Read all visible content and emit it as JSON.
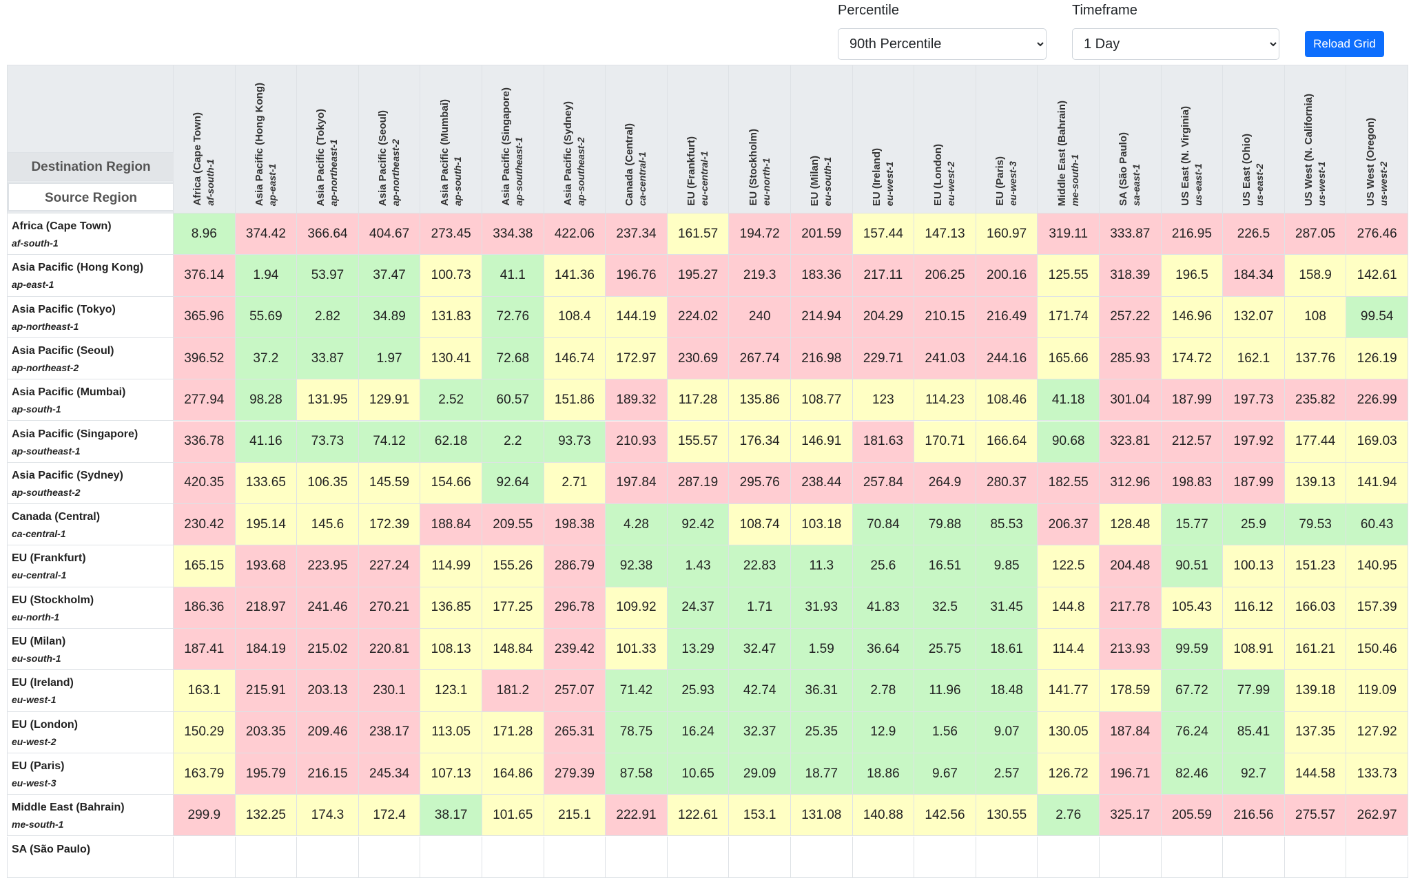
{
  "controls": {
    "percentile": {
      "label": "Percentile",
      "selected": "90th Percentile"
    },
    "timeframe": {
      "label": "Timeframe",
      "selected": "1 Day"
    },
    "button": "Reload Grid"
  },
  "table": {
    "corner": [
      "Destination Region",
      "Source Region"
    ],
    "palette": {
      "low": "#c8f7c5",
      "mid": "#ffffc4",
      "high": "#ffcdd2"
    },
    "columns": [
      {
        "name": "Africa (Cape Town)",
        "code": "af-south-1"
      },
      {
        "name": "Asia Pacific (Hong Kong)",
        "code": "ap-east-1"
      },
      {
        "name": "Asia Pacific (Tokyo)",
        "code": "ap-northeast-1"
      },
      {
        "name": "Asia Pacific (Seoul)",
        "code": "ap-northeast-2"
      },
      {
        "name": "Asia Pacific (Mumbai)",
        "code": "ap-south-1"
      },
      {
        "name": "Asia Pacific (Singapore)",
        "code": "ap-southeast-1"
      },
      {
        "name": "Asia Pacific (Sydney)",
        "code": "ap-southeast-2"
      },
      {
        "name": "Canada (Central)",
        "code": "ca-central-1"
      },
      {
        "name": "EU (Frankfurt)",
        "code": "eu-central-1"
      },
      {
        "name": "EU (Stockholm)",
        "code": "eu-north-1"
      },
      {
        "name": "EU (Milan)",
        "code": "eu-south-1"
      },
      {
        "name": "EU (Ireland)",
        "code": "eu-west-1"
      },
      {
        "name": "EU (London)",
        "code": "eu-west-2"
      },
      {
        "name": "EU (Paris)",
        "code": "eu-west-3"
      },
      {
        "name": "Middle East (Bahrain)",
        "code": "me-south-1"
      },
      {
        "name": "SA (São Paulo)",
        "code": "sa-east-1"
      },
      {
        "name": "US East (N. Virginia)",
        "code": "us-east-1"
      },
      {
        "name": "US East (Ohio)",
        "code": "us-east-2"
      },
      {
        "name": "US West (N. California)",
        "code": "us-west-1"
      },
      {
        "name": "US West (Oregon)",
        "code": "us-west-2"
      }
    ],
    "rows": [
      {
        "name": "Africa (Cape Town)",
        "code": "af-south-1",
        "values": [
          8.96,
          374.42,
          366.64,
          404.67,
          273.45,
          334.38,
          422.06,
          237.34,
          161.57,
          194.72,
          201.59,
          157.44,
          147.13,
          160.97,
          319.11,
          333.87,
          216.95,
          226.5,
          287.05,
          276.46
        ],
        "levels": [
          "low",
          "high",
          "high",
          "high",
          "high",
          "high",
          "high",
          "high",
          "mid",
          "high",
          "high",
          "mid",
          "mid",
          "mid",
          "high",
          "high",
          "high",
          "high",
          "high",
          "high"
        ]
      },
      {
        "name": "Asia Pacific (Hong Kong)",
        "code": "ap-east-1",
        "values": [
          376.14,
          1.94,
          53.97,
          37.47,
          100.73,
          41.1,
          141.36,
          196.76,
          195.27,
          219.3,
          183.36,
          217.11,
          206.25,
          200.16,
          125.55,
          318.39,
          196.5,
          184.34,
          158.9,
          142.61
        ],
        "levels": [
          "high",
          "low",
          "low",
          "low",
          "mid",
          "low",
          "mid",
          "high",
          "high",
          "high",
          "high",
          "high",
          "high",
          "high",
          "mid",
          "high",
          "mid",
          "high",
          "mid",
          "mid"
        ]
      },
      {
        "name": "Asia Pacific (Tokyo)",
        "code": "ap-northeast-1",
        "values": [
          365.96,
          55.69,
          2.82,
          34.89,
          131.83,
          72.76,
          108.4,
          144.19,
          224.02,
          240.0,
          214.94,
          204.29,
          210.15,
          216.49,
          171.74,
          257.22,
          146.96,
          132.07,
          108.0,
          99.54
        ],
        "levels": [
          "high",
          "low",
          "low",
          "low",
          "mid",
          "low",
          "mid",
          "mid",
          "high",
          "high",
          "high",
          "high",
          "high",
          "high",
          "mid",
          "high",
          "mid",
          "mid",
          "mid",
          "low"
        ]
      },
      {
        "name": "Asia Pacific (Seoul)",
        "code": "ap-northeast-2",
        "values": [
          396.52,
          37.2,
          33.87,
          1.97,
          130.41,
          72.68,
          146.74,
          172.97,
          230.69,
          267.74,
          216.98,
          229.71,
          241.03,
          244.16,
          165.66,
          285.93,
          174.72,
          162.1,
          137.76,
          126.19
        ],
        "levels": [
          "high",
          "low",
          "low",
          "low",
          "mid",
          "low",
          "mid",
          "mid",
          "high",
          "high",
          "high",
          "high",
          "high",
          "high",
          "mid",
          "high",
          "mid",
          "mid",
          "mid",
          "mid"
        ]
      },
      {
        "name": "Asia Pacific (Mumbai)",
        "code": "ap-south-1",
        "values": [
          277.94,
          98.28,
          131.95,
          129.91,
          2.52,
          60.57,
          151.86,
          189.32,
          117.28,
          135.86,
          108.77,
          123.0,
          114.23,
          108.46,
          41.18,
          301.04,
          187.99,
          197.73,
          235.82,
          226.99
        ],
        "levels": [
          "high",
          "low",
          "mid",
          "mid",
          "low",
          "low",
          "mid",
          "high",
          "mid",
          "mid",
          "mid",
          "mid",
          "mid",
          "mid",
          "low",
          "high",
          "high",
          "high",
          "high",
          "high"
        ]
      },
      {
        "name": "Asia Pacific (Singapore)",
        "code": "ap-southeast-1",
        "values": [
          336.78,
          41.16,
          73.73,
          74.12,
          62.18,
          2.2,
          93.73,
          210.93,
          155.57,
          176.34,
          146.91,
          181.63,
          170.71,
          166.64,
          90.68,
          323.81,
          212.57,
          197.92,
          177.44,
          169.03
        ],
        "levels": [
          "high",
          "low",
          "low",
          "low",
          "low",
          "low",
          "low",
          "high",
          "mid",
          "mid",
          "mid",
          "high",
          "mid",
          "mid",
          "low",
          "high",
          "high",
          "high",
          "mid",
          "mid"
        ]
      },
      {
        "name": "Asia Pacific (Sydney)",
        "code": "ap-southeast-2",
        "values": [
          420.35,
          133.65,
          106.35,
          145.59,
          154.66,
          92.64,
          2.71,
          197.84,
          287.19,
          295.76,
          238.44,
          257.84,
          264.9,
          280.37,
          182.55,
          312.96,
          198.83,
          187.99,
          139.13,
          141.94
        ],
        "levels": [
          "high",
          "mid",
          "mid",
          "mid",
          "mid",
          "low",
          "mid",
          "high",
          "high",
          "high",
          "high",
          "high",
          "high",
          "high",
          "high",
          "high",
          "high",
          "high",
          "mid",
          "mid"
        ]
      },
      {
        "name": "Canada (Central)",
        "code": "ca-central-1",
        "values": [
          230.42,
          195.14,
          145.6,
          172.39,
          188.84,
          209.55,
          198.38,
          4.28,
          92.42,
          108.74,
          103.18,
          70.84,
          79.88,
          85.53,
          206.37,
          128.48,
          15.77,
          25.9,
          79.53,
          60.43
        ],
        "levels": [
          "high",
          "mid",
          "mid",
          "mid",
          "high",
          "high",
          "high",
          "low",
          "low",
          "mid",
          "mid",
          "low",
          "low",
          "low",
          "high",
          "mid",
          "low",
          "low",
          "low",
          "low"
        ]
      },
      {
        "name": "EU (Frankfurt)",
        "code": "eu-central-1",
        "values": [
          165.15,
          193.68,
          223.95,
          227.24,
          114.99,
          155.26,
          286.79,
          92.38,
          1.43,
          22.83,
          11.3,
          25.6,
          16.51,
          9.85,
          122.5,
          204.48,
          90.51,
          100.13,
          151.23,
          140.95
        ],
        "levels": [
          "mid",
          "high",
          "high",
          "high",
          "mid",
          "mid",
          "high",
          "low",
          "low",
          "low",
          "low",
          "low",
          "low",
          "low",
          "mid",
          "high",
          "low",
          "mid",
          "mid",
          "mid"
        ]
      },
      {
        "name": "EU (Stockholm)",
        "code": "eu-north-1",
        "values": [
          186.36,
          218.97,
          241.46,
          270.21,
          136.85,
          177.25,
          296.78,
          109.92,
          24.37,
          1.71,
          31.93,
          41.83,
          32.5,
          31.45,
          144.8,
          217.78,
          105.43,
          116.12,
          166.03,
          157.39
        ],
        "levels": [
          "high",
          "high",
          "high",
          "high",
          "mid",
          "mid",
          "high",
          "mid",
          "low",
          "low",
          "low",
          "low",
          "low",
          "low",
          "mid",
          "high",
          "mid",
          "mid",
          "mid",
          "mid"
        ]
      },
      {
        "name": "EU (Milan)",
        "code": "eu-south-1",
        "values": [
          187.41,
          184.19,
          215.02,
          220.81,
          108.13,
          148.84,
          239.42,
          101.33,
          13.29,
          32.47,
          1.59,
          36.64,
          25.75,
          18.61,
          114.4,
          213.93,
          99.59,
          108.91,
          161.21,
          150.46
        ],
        "levels": [
          "high",
          "high",
          "high",
          "high",
          "mid",
          "mid",
          "high",
          "mid",
          "low",
          "low",
          "low",
          "low",
          "low",
          "low",
          "mid",
          "high",
          "low",
          "mid",
          "mid",
          "mid"
        ]
      },
      {
        "name": "EU (Ireland)",
        "code": "eu-west-1",
        "values": [
          163.1,
          215.91,
          203.13,
          230.1,
          123.1,
          181.2,
          257.07,
          71.42,
          25.93,
          42.74,
          36.31,
          2.78,
          11.96,
          18.48,
          141.77,
          178.59,
          67.72,
          77.99,
          139.18,
          119.09
        ],
        "levels": [
          "mid",
          "high",
          "high",
          "high",
          "mid",
          "high",
          "high",
          "low",
          "low",
          "low",
          "low",
          "low",
          "low",
          "low",
          "mid",
          "mid",
          "low",
          "low",
          "mid",
          "mid"
        ]
      },
      {
        "name": "EU (London)",
        "code": "eu-west-2",
        "values": [
          150.29,
          203.35,
          209.46,
          238.17,
          113.05,
          171.28,
          265.31,
          78.75,
          16.24,
          32.37,
          25.35,
          12.9,
          1.56,
          9.07,
          130.05,
          187.84,
          76.24,
          85.41,
          137.35,
          127.92
        ],
        "levels": [
          "mid",
          "high",
          "high",
          "high",
          "mid",
          "mid",
          "high",
          "low",
          "low",
          "low",
          "low",
          "low",
          "low",
          "low",
          "mid",
          "high",
          "low",
          "low",
          "mid",
          "mid"
        ]
      },
      {
        "name": "EU (Paris)",
        "code": "eu-west-3",
        "values": [
          163.79,
          195.79,
          216.15,
          245.34,
          107.13,
          164.86,
          279.39,
          87.58,
          10.65,
          29.09,
          18.77,
          18.86,
          9.67,
          2.57,
          126.72,
          196.71,
          82.46,
          92.7,
          144.58,
          133.73
        ],
        "levels": [
          "mid",
          "high",
          "high",
          "high",
          "mid",
          "mid",
          "high",
          "low",
          "low",
          "low",
          "low",
          "low",
          "low",
          "low",
          "mid",
          "high",
          "low",
          "low",
          "mid",
          "mid"
        ]
      },
      {
        "name": "Middle East (Bahrain)",
        "code": "me-south-1",
        "values": [
          299.9,
          132.25,
          174.3,
          172.4,
          38.17,
          101.65,
          215.1,
          222.91,
          122.61,
          153.1,
          131.08,
          140.88,
          142.56,
          130.55,
          2.76,
          325.17,
          205.59,
          216.56,
          275.57,
          262.97
        ],
        "levels": [
          "high",
          "mid",
          "mid",
          "mid",
          "low",
          "mid",
          "mid",
          "high",
          "mid",
          "mid",
          "mid",
          "mid",
          "mid",
          "mid",
          "low",
          "high",
          "high",
          "high",
          "high",
          "high"
        ]
      },
      {
        "name": "SA (São Paulo)"
      }
    ]
  }
}
